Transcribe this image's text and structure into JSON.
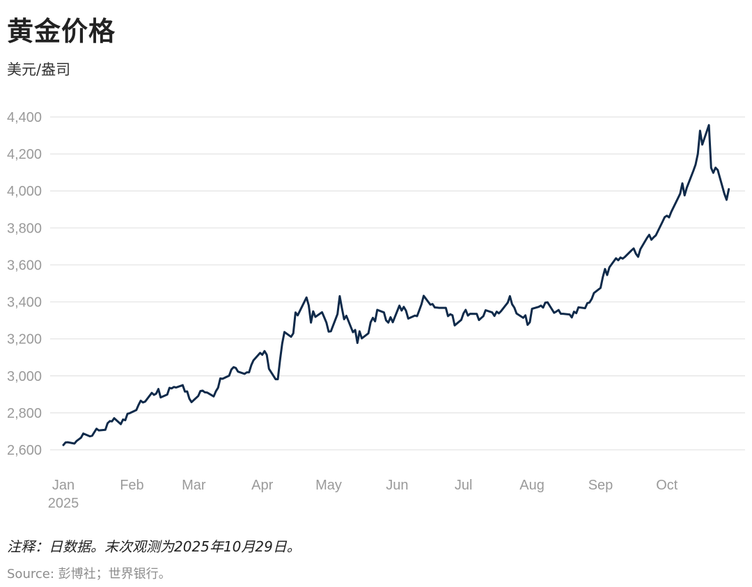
{
  "title": "黄金价格",
  "subtitle": "美元/盎司",
  "note": "注释：日数据。末次观测为2025年10月29日。",
  "source": "Source: 彭博社；世界银行。",
  "colors": {
    "line": "#0f2a4a",
    "grid": "#e3e3e3",
    "tick_text": "#9a9a9a"
  },
  "chart_data": {
    "type": "line",
    "title": "黄金价格",
    "ylabel": "美元/盎司",
    "xlabel": "",
    "ylim": [
      2500,
      4440
    ],
    "yticks": [
      2600,
      2800,
      3000,
      3200,
      3400,
      3600,
      3800,
      4000,
      4200,
      4400
    ],
    "ytick_labels": [
      "2,600",
      "2,800",
      "3,000",
      "3,200",
      "3,400",
      "3,600",
      "3,800",
      "4,000",
      "4,200",
      "4,400"
    ],
    "xlim": [
      "2025-01-01",
      "2025-10-31"
    ],
    "xticks": [
      {
        "date": "2025-01-01",
        "label": "Jan",
        "sublabel": "2025"
      },
      {
        "date": "2025-02-01",
        "label": "Feb",
        "sublabel": ""
      },
      {
        "date": "2025-03-01",
        "label": "Mar",
        "sublabel": ""
      },
      {
        "date": "2025-04-01",
        "label": "Apr",
        "sublabel": ""
      },
      {
        "date": "2025-05-01",
        "label": "May",
        "sublabel": ""
      },
      {
        "date": "2025-06-01",
        "label": "Jun",
        "sublabel": ""
      },
      {
        "date": "2025-07-01",
        "label": "Jul",
        "sublabel": ""
      },
      {
        "date": "2025-08-01",
        "label": "Aug",
        "sublabel": ""
      },
      {
        "date": "2025-09-01",
        "label": "Sep",
        "sublabel": ""
      },
      {
        "date": "2025-10-01",
        "label": "Oct",
        "sublabel": ""
      }
    ],
    "grid": true,
    "legend": "none",
    "series": [
      {
        "points": [
          [
            "2025-01-01",
            2626
          ],
          [
            "2025-01-02",
            2640
          ],
          [
            "2025-01-03",
            2641
          ],
          [
            "2025-01-06",
            2634
          ],
          [
            "2025-01-07",
            2648
          ],
          [
            "2025-01-08",
            2657
          ],
          [
            "2025-01-09",
            2666
          ],
          [
            "2025-01-10",
            2688
          ],
          [
            "2025-01-13",
            2673
          ],
          [
            "2025-01-14",
            2676
          ],
          [
            "2025-01-15",
            2695
          ],
          [
            "2025-01-16",
            2714
          ],
          [
            "2025-01-17",
            2705
          ],
          [
            "2025-01-20",
            2708
          ],
          [
            "2025-01-21",
            2744
          ],
          [
            "2025-01-22",
            2755
          ],
          [
            "2025-01-23",
            2754
          ],
          [
            "2025-01-24",
            2771
          ],
          [
            "2025-01-27",
            2739
          ],
          [
            "2025-01-28",
            2764
          ],
          [
            "2025-01-29",
            2760
          ],
          [
            "2025-01-30",
            2795
          ],
          [
            "2025-01-31",
            2798
          ],
          [
            "2025-02-03",
            2815
          ],
          [
            "2025-02-04",
            2842
          ],
          [
            "2025-02-05",
            2866
          ],
          [
            "2025-02-06",
            2856
          ],
          [
            "2025-02-07",
            2861
          ],
          [
            "2025-02-10",
            2908
          ],
          [
            "2025-02-11",
            2897
          ],
          [
            "2025-02-12",
            2904
          ],
          [
            "2025-02-13",
            2929
          ],
          [
            "2025-02-14",
            2883
          ],
          [
            "2025-02-17",
            2899
          ],
          [
            "2025-02-18",
            2935
          ],
          [
            "2025-02-19",
            2932
          ],
          [
            "2025-02-20",
            2940
          ],
          [
            "2025-02-21",
            2937
          ],
          [
            "2025-02-24",
            2950
          ],
          [
            "2025-02-25",
            2915
          ],
          [
            "2025-02-26",
            2916
          ],
          [
            "2025-02-27",
            2876
          ],
          [
            "2025-02-28",
            2858
          ],
          [
            "2025-03-03",
            2891
          ],
          [
            "2025-03-04",
            2918
          ],
          [
            "2025-03-05",
            2920
          ],
          [
            "2025-03-06",
            2911
          ],
          [
            "2025-03-07",
            2910
          ],
          [
            "2025-03-10",
            2889
          ],
          [
            "2025-03-11",
            2917
          ],
          [
            "2025-03-12",
            2936
          ],
          [
            "2025-03-13",
            2986
          ],
          [
            "2025-03-14",
            2984
          ],
          [
            "2025-03-17",
            3001
          ],
          [
            "2025-03-18",
            3034
          ],
          [
            "2025-03-19",
            3047
          ],
          [
            "2025-03-20",
            3043
          ],
          [
            "2025-03-21",
            3023
          ],
          [
            "2025-03-24",
            3011
          ],
          [
            "2025-03-25",
            3019
          ],
          [
            "2025-03-26",
            3019
          ],
          [
            "2025-03-27",
            3058
          ],
          [
            "2025-03-28",
            3084
          ],
          [
            "2025-03-31",
            3124
          ],
          [
            "2025-04-01",
            3114
          ],
          [
            "2025-04-02",
            3134
          ],
          [
            "2025-04-03",
            3114
          ],
          [
            "2025-04-04",
            3038
          ],
          [
            "2025-04-07",
            2982
          ],
          [
            "2025-04-08",
            2982
          ],
          [
            "2025-04-09",
            3083
          ],
          [
            "2025-04-10",
            3175
          ],
          [
            "2025-04-11",
            3237
          ],
          [
            "2025-04-14",
            3211
          ],
          [
            "2025-04-15",
            3230
          ],
          [
            "2025-04-16",
            3343
          ],
          [
            "2025-04-17",
            3327
          ],
          [
            "2025-04-21",
            3424
          ],
          [
            "2025-04-22",
            3381
          ],
          [
            "2025-04-23",
            3288
          ],
          [
            "2025-04-24",
            3349
          ],
          [
            "2025-04-25",
            3319
          ],
          [
            "2025-04-28",
            3344
          ],
          [
            "2025-04-29",
            3317
          ],
          [
            "2025-04-30",
            3288
          ],
          [
            "2025-05-01",
            3239
          ],
          [
            "2025-05-02",
            3241
          ],
          [
            "2025-05-05",
            3334
          ],
          [
            "2025-05-06",
            3431
          ],
          [
            "2025-05-07",
            3367
          ],
          [
            "2025-05-08",
            3306
          ],
          [
            "2025-05-09",
            3325
          ],
          [
            "2025-05-12",
            3236
          ],
          [
            "2025-05-13",
            3248
          ],
          [
            "2025-05-14",
            3178
          ],
          [
            "2025-05-15",
            3241
          ],
          [
            "2025-05-16",
            3203
          ],
          [
            "2025-05-19",
            3230
          ],
          [
            "2025-05-20",
            3290
          ],
          [
            "2025-05-21",
            3314
          ],
          [
            "2025-05-22",
            3295
          ],
          [
            "2025-05-23",
            3357
          ],
          [
            "2025-05-26",
            3343
          ],
          [
            "2025-05-27",
            3300
          ],
          [
            "2025-05-28",
            3288
          ],
          [
            "2025-05-29",
            3317
          ],
          [
            "2025-05-30",
            3290
          ],
          [
            "2025-06-02",
            3380
          ],
          [
            "2025-06-03",
            3353
          ],
          [
            "2025-06-04",
            3373
          ],
          [
            "2025-06-05",
            3352
          ],
          [
            "2025-06-06",
            3310
          ],
          [
            "2025-06-09",
            3326
          ],
          [
            "2025-06-10",
            3323
          ],
          [
            "2025-06-11",
            3355
          ],
          [
            "2025-06-12",
            3387
          ],
          [
            "2025-06-13",
            3433
          ],
          [
            "2025-06-16",
            3385
          ],
          [
            "2025-06-17",
            3388
          ],
          [
            "2025-06-18",
            3370
          ],
          [
            "2025-06-19",
            3369
          ],
          [
            "2025-06-20",
            3368
          ],
          [
            "2025-06-23",
            3368
          ],
          [
            "2025-06-24",
            3323
          ],
          [
            "2025-06-25",
            3333
          ],
          [
            "2025-06-26",
            3328
          ],
          [
            "2025-06-27",
            3273
          ],
          [
            "2025-06-30",
            3303
          ],
          [
            "2025-07-01",
            3338
          ],
          [
            "2025-07-02",
            3357
          ],
          [
            "2025-07-03",
            3326
          ],
          [
            "2025-07-04",
            3336
          ],
          [
            "2025-07-07",
            3335
          ],
          [
            "2025-07-08",
            3302
          ],
          [
            "2025-07-09",
            3313
          ],
          [
            "2025-07-10",
            3323
          ],
          [
            "2025-07-11",
            3355
          ],
          [
            "2025-07-14",
            3343
          ],
          [
            "2025-07-15",
            3324
          ],
          [
            "2025-07-16",
            3347
          ],
          [
            "2025-07-17",
            3338
          ],
          [
            "2025-07-18",
            3350
          ],
          [
            "2025-07-21",
            3396
          ],
          [
            "2025-07-22",
            3431
          ],
          [
            "2025-07-23",
            3387
          ],
          [
            "2025-07-24",
            3369
          ],
          [
            "2025-07-25",
            3337
          ],
          [
            "2025-07-28",
            3314
          ],
          [
            "2025-07-29",
            3327
          ],
          [
            "2025-07-30",
            3276
          ],
          [
            "2025-07-31",
            3290
          ],
          [
            "2025-08-01",
            3363
          ],
          [
            "2025-08-04",
            3373
          ],
          [
            "2025-08-05",
            3380
          ],
          [
            "2025-08-06",
            3369
          ],
          [
            "2025-08-07",
            3396
          ],
          [
            "2025-08-08",
            3398
          ],
          [
            "2025-08-11",
            3341
          ],
          [
            "2025-08-12",
            3348
          ],
          [
            "2025-08-13",
            3356
          ],
          [
            "2025-08-14",
            3336
          ],
          [
            "2025-08-15",
            3336
          ],
          [
            "2025-08-18",
            3332
          ],
          [
            "2025-08-19",
            3316
          ],
          [
            "2025-08-20",
            3347
          ],
          [
            "2025-08-21",
            3339
          ],
          [
            "2025-08-22",
            3371
          ],
          [
            "2025-08-25",
            3366
          ],
          [
            "2025-08-26",
            3393
          ],
          [
            "2025-08-27",
            3397
          ],
          [
            "2025-08-28",
            3416
          ],
          [
            "2025-08-29",
            3448
          ],
          [
            "2025-09-01",
            3476
          ],
          [
            "2025-09-02",
            3533
          ],
          [
            "2025-09-03",
            3578
          ],
          [
            "2025-09-04",
            3545
          ],
          [
            "2025-09-05",
            3587
          ],
          [
            "2025-09-08",
            3636
          ],
          [
            "2025-09-09",
            3625
          ],
          [
            "2025-09-10",
            3640
          ],
          [
            "2025-09-11",
            3634
          ],
          [
            "2025-09-12",
            3643
          ],
          [
            "2025-09-15",
            3679
          ],
          [
            "2025-09-16",
            3689
          ],
          [
            "2025-09-17",
            3660
          ],
          [
            "2025-09-18",
            3644
          ],
          [
            "2025-09-19",
            3685
          ],
          [
            "2025-09-22",
            3746
          ],
          [
            "2025-09-23",
            3763
          ],
          [
            "2025-09-24",
            3736
          ],
          [
            "2025-09-25",
            3749
          ],
          [
            "2025-09-26",
            3760
          ],
          [
            "2025-09-29",
            3833
          ],
          [
            "2025-09-30",
            3858
          ],
          [
            "2025-10-01",
            3866
          ],
          [
            "2025-10-02",
            3857
          ],
          [
            "2025-10-03",
            3887
          ],
          [
            "2025-10-06",
            3960
          ],
          [
            "2025-10-07",
            3985
          ],
          [
            "2025-10-08",
            4041
          ],
          [
            "2025-10-09",
            3976
          ],
          [
            "2025-10-10",
            4017
          ],
          [
            "2025-10-13",
            4110
          ],
          [
            "2025-10-14",
            4143
          ],
          [
            "2025-10-15",
            4200
          ],
          [
            "2025-10-16",
            4326
          ],
          [
            "2025-10-17",
            4251
          ],
          [
            "2025-10-20",
            4356
          ],
          [
            "2025-10-21",
            4125
          ],
          [
            "2025-10-22",
            4098
          ],
          [
            "2025-10-23",
            4126
          ],
          [
            "2025-10-24",
            4113
          ],
          [
            "2025-10-27",
            3985
          ],
          [
            "2025-10-28",
            3952
          ],
          [
            "2025-10-29",
            4010
          ]
        ]
      }
    ]
  }
}
